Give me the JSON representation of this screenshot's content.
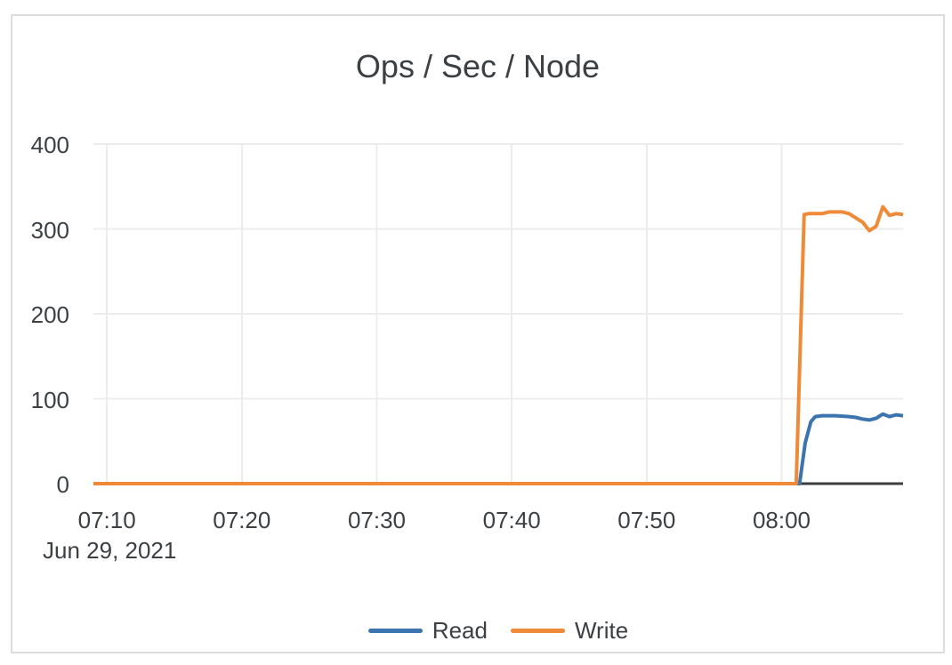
{
  "card": {
    "background": "#ffffff",
    "border_color": "#dcdcdc"
  },
  "chart_data": {
    "type": "line",
    "title": "Ops / Sec / Node",
    "grid": true,
    "colors": {
      "grid_line": "#ececec",
      "axis_line": "#3b3d3f",
      "text": "#3d4043",
      "read_series": "#3b74ae",
      "write_series": "#ee8a38"
    },
    "x_axis": {
      "range": [
        "07:09",
        "08:09"
      ],
      "tick_labels": [
        "07:10",
        "07:20",
        "07:30",
        "07:40",
        "07:50",
        "08:00"
      ],
      "date_label": "Jun 29, 2021"
    },
    "y_axis": {
      "range": [
        0,
        400
      ],
      "tick_labels": [
        "0",
        "100",
        "200",
        "300",
        "400"
      ],
      "tick_values": [
        0,
        100,
        200,
        300,
        400
      ]
    },
    "legend": {
      "position": "bottom",
      "items": [
        {
          "label": "Read",
          "color": "#3b74ae"
        },
        {
          "label": "Write",
          "color": "#ee8a38"
        }
      ]
    },
    "series": [
      {
        "name": "Read",
        "color": "#3b74ae",
        "points": [
          [
            "07:09:00",
            0
          ],
          [
            "07:20:00",
            0
          ],
          [
            "07:30:00",
            0
          ],
          [
            "07:40:00",
            0
          ],
          [
            "07:50:00",
            0
          ],
          [
            "08:00:00",
            0
          ],
          [
            "08:01:20",
            0
          ],
          [
            "08:01:45",
            48
          ],
          [
            "08:02:10",
            73
          ],
          [
            "08:02:30",
            79
          ],
          [
            "08:03:00",
            80
          ],
          [
            "08:04:00",
            80
          ],
          [
            "08:05:00",
            79
          ],
          [
            "08:05:30",
            78
          ],
          [
            "08:06:00",
            76
          ],
          [
            "08:06:30",
            75
          ],
          [
            "08:07:00",
            77
          ],
          [
            "08:07:30",
            82
          ],
          [
            "08:08:00",
            79
          ],
          [
            "08:08:30",
            81
          ],
          [
            "08:09:00",
            80
          ]
        ]
      },
      {
        "name": "Write",
        "color": "#ee8a38",
        "points": [
          [
            "07:09:00",
            0
          ],
          [
            "07:20:00",
            0
          ],
          [
            "07:30:00",
            0
          ],
          [
            "07:40:00",
            0
          ],
          [
            "07:50:00",
            0
          ],
          [
            "08:00:00",
            0
          ],
          [
            "08:01:05",
            0
          ],
          [
            "08:01:40",
            317
          ],
          [
            "08:02:00",
            318
          ],
          [
            "08:03:00",
            318
          ],
          [
            "08:03:30",
            320
          ],
          [
            "08:04:30",
            320
          ],
          [
            "08:05:00",
            318
          ],
          [
            "08:06:00",
            308
          ],
          [
            "08:06:30",
            298
          ],
          [
            "08:07:00",
            303
          ],
          [
            "08:07:30",
            326
          ],
          [
            "08:08:00",
            316
          ],
          [
            "08:08:30",
            318
          ],
          [
            "08:09:00",
            317
          ]
        ]
      }
    ]
  }
}
